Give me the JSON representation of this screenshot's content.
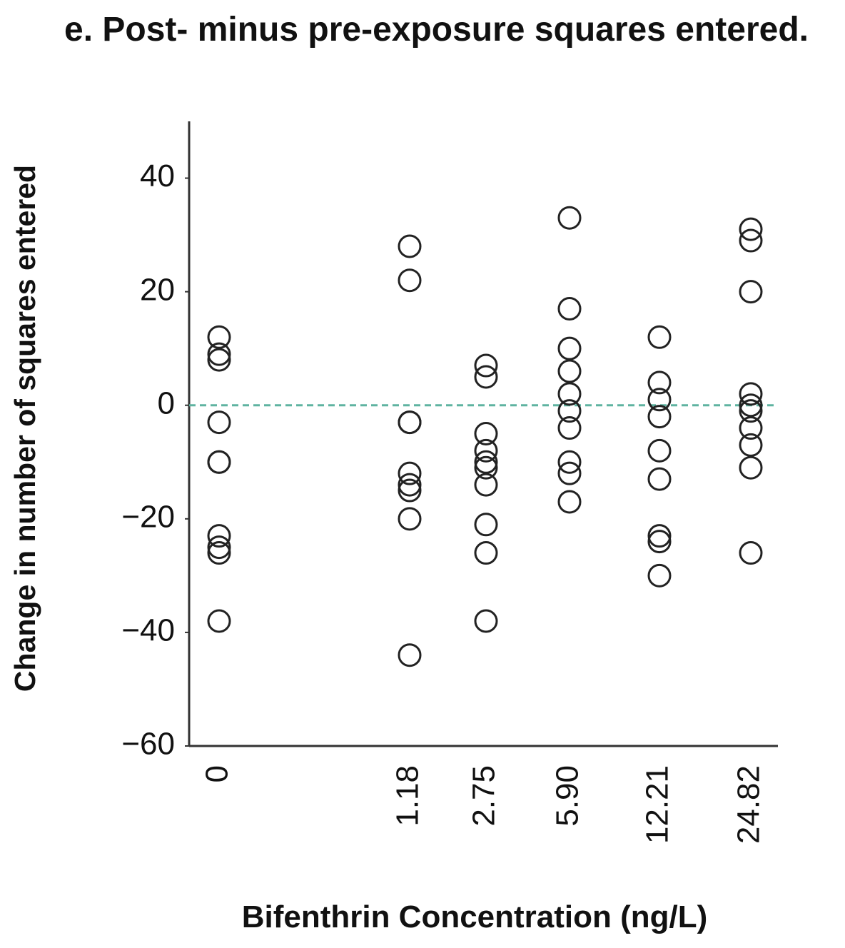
{
  "chart_data": {
    "type": "strip",
    "title": "e. Post- minus pre-exposure squares entered.",
    "xlabel": "Bifenthrin Concentration (ng/L)",
    "ylabel": "Change in number of squares entered",
    "categories": [
      "0",
      "1.18",
      "2.75",
      "5.90",
      "12.21",
      "24.82"
    ],
    "values": [
      [
        12,
        9,
        8,
        -3,
        -10,
        -10,
        -23,
        -25,
        -26,
        -38
      ],
      [
        28,
        22,
        -3,
        -3,
        -12,
        -14,
        -15,
        -20,
        -44
      ],
      [
        7,
        5,
        -5,
        -8,
        -10,
        -11,
        -14,
        -21,
        -26,
        -38
      ],
      [
        33,
        17,
        10,
        6,
        2,
        -1,
        -4,
        -10,
        -12,
        -17
      ],
      [
        12,
        4,
        1,
        -2,
        -8,
        -13,
        -23,
        -24,
        -30
      ],
      [
        31,
        29,
        20,
        2,
        0,
        -1,
        -4,
        -7,
        -11,
        -26
      ]
    ],
    "color": "#222222",
    "ylim": [
      -60,
      50
    ],
    "yticks": [
      {
        "value": -60,
        "label": "−60"
      },
      {
        "value": -40,
        "label": "−40"
      },
      {
        "value": -20,
        "label": "−20"
      },
      0,
      20,
      40
    ],
    "reference_line": {
      "value": 0,
      "color": "#5fb3a0"
    }
  }
}
